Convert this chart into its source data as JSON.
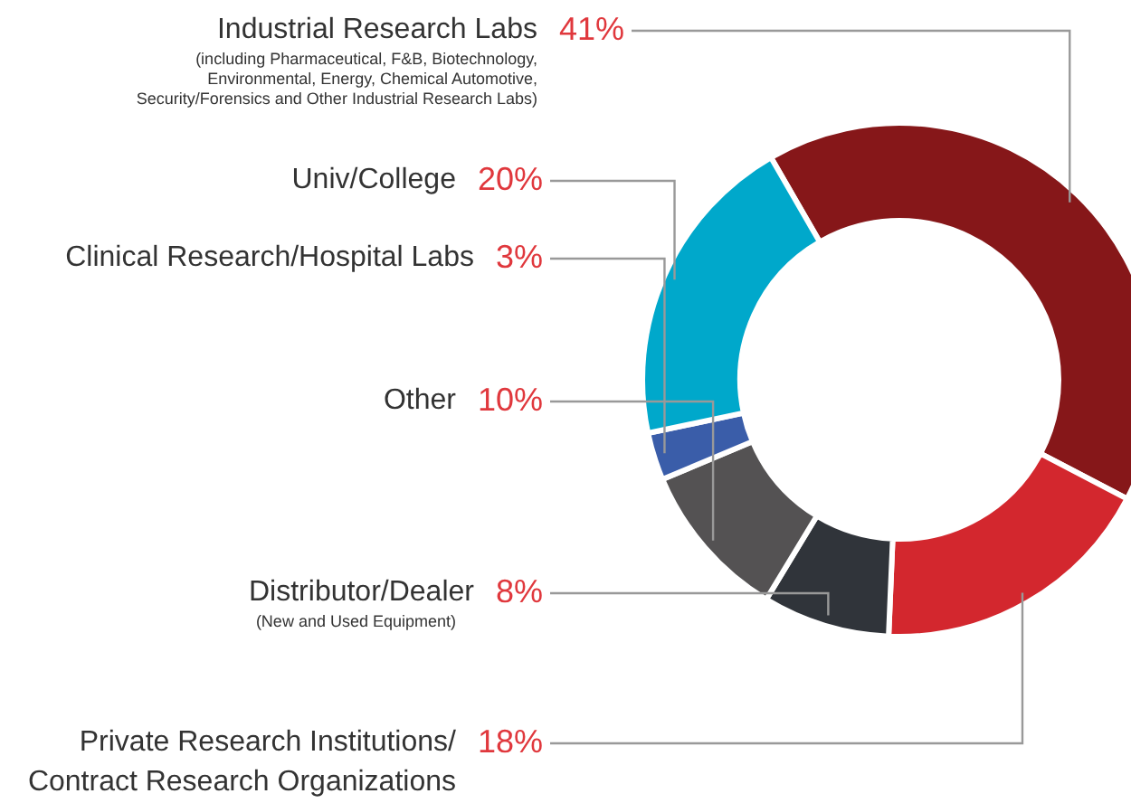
{
  "chart_data": {
    "type": "donut",
    "categories": [
      "Industrial Research Labs",
      "Private Research Institutions/\nContract Research Organizations",
      "Distributor/Dealer",
      "Other",
      "Clinical Research/Hospital Labs",
      "Univ/College"
    ],
    "values": [
      41,
      18,
      8,
      10,
      3,
      20
    ],
    "value_labels": [
      "41%",
      "18%",
      "8%",
      "10%",
      "3%",
      "20%"
    ],
    "colors": [
      "#861719",
      "#d3272e",
      "#30343a",
      "#545253",
      "#3a5da9",
      "#00a8cb"
    ],
    "annotations": [
      {
        "text": "(including Pharmaceutical, F&B, Biotechnology,\nEnvironmental, Energy, Chemical Automotive,\nSecurity/Forensics and Other Industrial Research Labs)",
        "x": "Industrial Research Labs"
      },
      {
        "text": "(New and Used Equipment)",
        "x": "Distributor/Dealer"
      }
    ]
  }
}
